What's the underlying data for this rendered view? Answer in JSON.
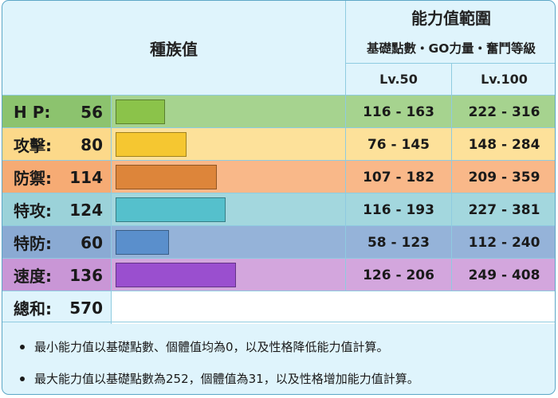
{
  "header": {
    "base_stats_title": "種族值",
    "stat_range_title": "能力值範圍",
    "stat_range_subtitle": "基礎點數・GO力量・奮鬥等級",
    "lv50_label": "Lv.50",
    "lv100_label": "Lv.100"
  },
  "max_base_stat": 255,
  "stats": [
    {
      "name": "H P:",
      "value": "56",
      "lv50": "116 - 163",
      "lv100": "222 - 316",
      "row_color": "#a6d38f",
      "label_color": "#8cc36e",
      "bar_color": "#8bc34a"
    },
    {
      "name": "攻擊:",
      "value": "80",
      "lv50": "76 - 145",
      "lv100": "148 - 284",
      "row_color": "#fde19a",
      "label_color": "#fcd98a",
      "bar_color": "#f5c731"
    },
    {
      "name": "防禦:",
      "value": "114",
      "lv50": "107 - 182",
      "lv100": "209 - 359",
      "row_color": "#f9b889",
      "label_color": "#f6ab74",
      "bar_color": "#dd853a"
    },
    {
      "name": "特攻:",
      "value": "124",
      "lv50": "116 - 193",
      "lv100": "227 - 381",
      "row_color": "#a3d7de",
      "label_color": "#9bd2d9",
      "bar_color": "#55c0cc"
    },
    {
      "name": "特防:",
      "value": "60",
      "lv50": "58 - 123",
      "lv100": "112 - 240",
      "row_color": "#95b3d9",
      "label_color": "#8aaad3",
      "bar_color": "#5a8fcc"
    },
    {
      "name": "速度:",
      "value": "136",
      "lv50": "126 - 206",
      "lv100": "249 - 408",
      "row_color": "#d3a6dd",
      "label_color": "#c996d6",
      "bar_color": "#9a4fcf"
    }
  ],
  "total": {
    "name": "總和:",
    "value": "570"
  },
  "notes": [
    "最小能力值以基礎點數、個體值均為0，以及性格降低能力值計算。",
    "最大能力值以基礎點數為252，個體值為31，以及性格增加能力值計算。"
  ]
}
